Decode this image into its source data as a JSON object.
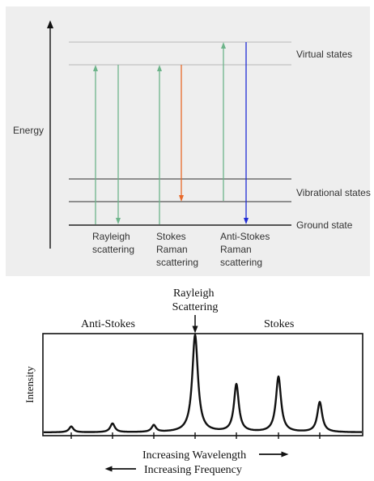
{
  "energy_diagram": {
    "y_axis_label": "Energy",
    "level_labels": {
      "virtual": "Virtual states",
      "vibrational": "Vibrational states",
      "ground": "Ground state"
    },
    "processes": [
      {
        "lines": [
          "Rayleigh",
          "scattering"
        ]
      },
      {
        "lines": [
          "Stokes",
          "Raman",
          "scattering"
        ]
      },
      {
        "lines": [
          "Anti-Stokes",
          "Raman",
          "scattering"
        ]
      }
    ],
    "colors": {
      "panel_background": "#eeeeee",
      "excitation_arrow": "#6db48a",
      "rayleigh_emission": "#6db48a",
      "stokes_emission": "#e8692a",
      "anti_stokes_emission": "#1f2bd6",
      "virtual_level": "#b8b8b8",
      "vibrational_level": "#555555",
      "ground_level": "#222222"
    }
  },
  "spectrum": {
    "peak_title": [
      "Rayleigh",
      "Scattering"
    ],
    "region_left": "Anti-Stokes",
    "region_right": "Stokes",
    "y_axis_label": "Intensity",
    "x_label_wavelength": "Increasing Wavelength",
    "x_label_frequency": "Increasing Frequency",
    "peaks": [
      {
        "name": "anti-stokes-peak-3",
        "relative_height": 0.06
      },
      {
        "name": "anti-stokes-peak-2",
        "relative_height": 0.09
      },
      {
        "name": "anti-stokes-peak-1",
        "relative_height": 0.07
      },
      {
        "name": "rayleigh-peak",
        "relative_height": 1.0
      },
      {
        "name": "stokes-peak-1",
        "relative_height": 0.49
      },
      {
        "name": "stokes-peak-2",
        "relative_height": 0.57
      },
      {
        "name": "stokes-peak-3",
        "relative_height": 0.31
      }
    ]
  }
}
